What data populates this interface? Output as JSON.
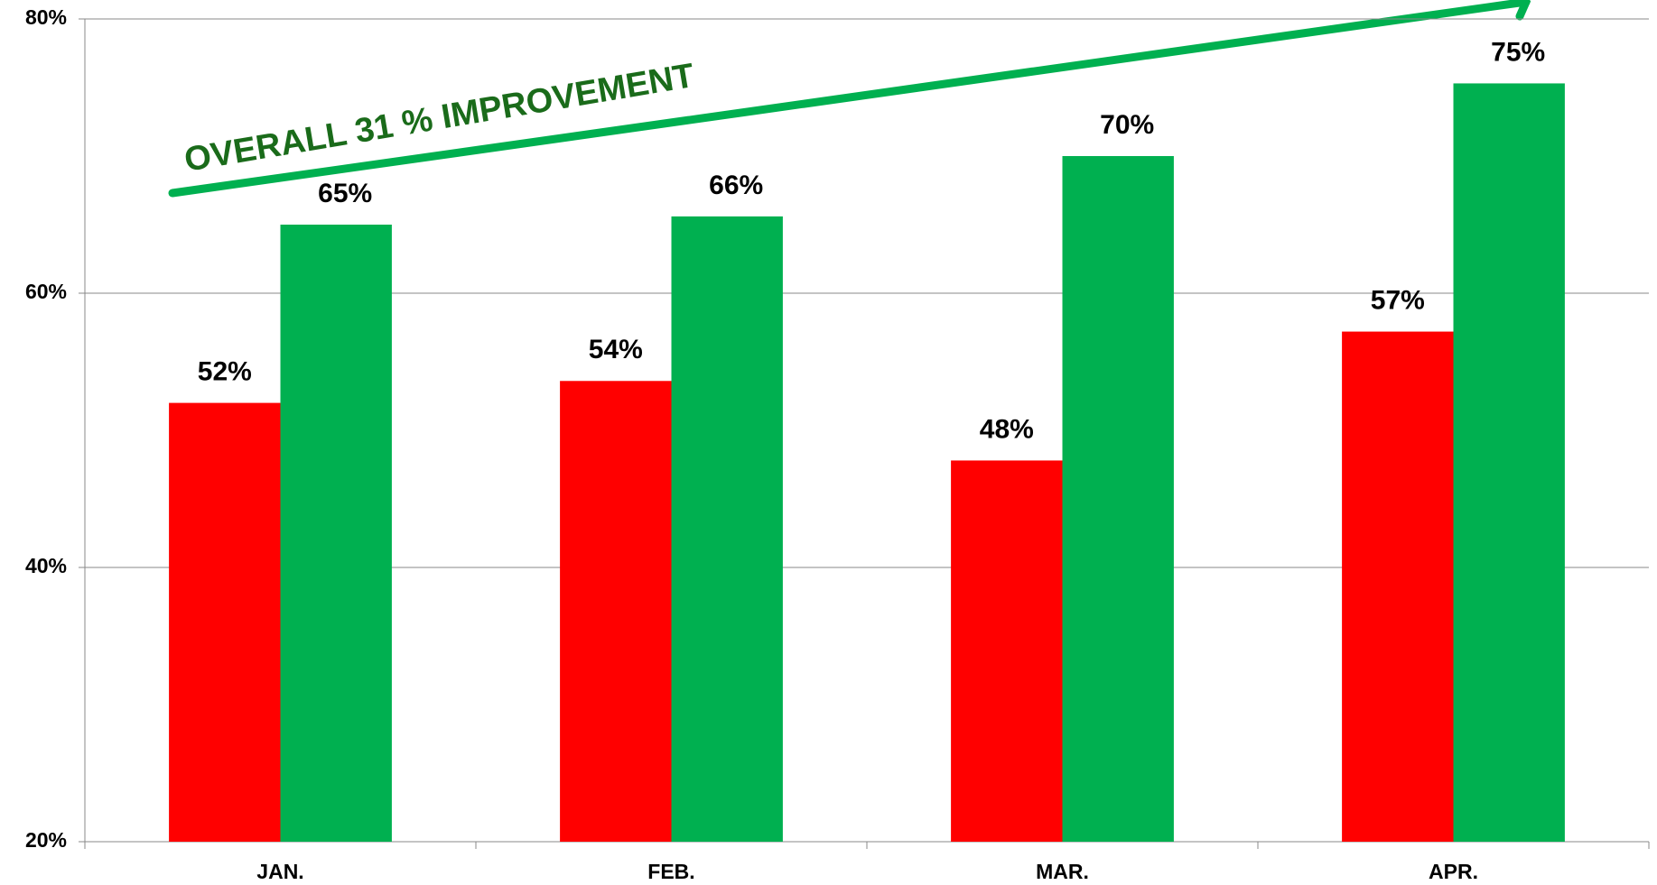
{
  "chart_data": {
    "type": "bar",
    "annotation": "OVERALL 31 % IMPROVEMENT",
    "categories": [
      "JAN.",
      "FEB.",
      "MAR.",
      "APR."
    ],
    "series": [
      {
        "color": "#ff0000",
        "values": [
          52,
          53.6,
          47.8,
          57.2
        ],
        "value_labels": [
          "52%",
          "54%",
          "48%",
          "57%"
        ]
      },
      {
        "color": "#00b050",
        "values": [
          65,
          65.6,
          70,
          75.3
        ],
        "value_labels": [
          "65%",
          "66%",
          "70%",
          "75%"
        ]
      }
    ],
    "ylim": [
      20,
      80
    ],
    "yticks": [
      {
        "value": 20,
        "label": "20%"
      },
      {
        "value": 40,
        "label": "40%"
      },
      {
        "value": 60,
        "label": "60%"
      },
      {
        "value": 80,
        "label": "80%"
      }
    ],
    "grid": true
  }
}
